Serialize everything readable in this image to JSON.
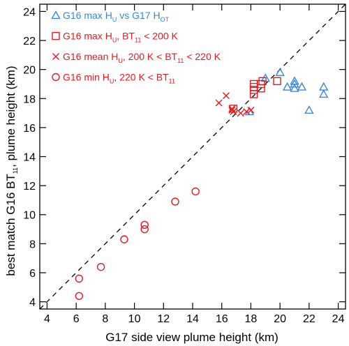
{
  "chart_data": {
    "type": "scatter",
    "xlabel": "G17 side view plume height (km)",
    "ylabel_parts": [
      "best match G16 BT",
      "11",
      ", plume height (km)"
    ],
    "xlim": [
      3.5,
      24.5
    ],
    "ylim": [
      3.5,
      24.5
    ],
    "xticks": [
      4,
      6,
      8,
      10,
      12,
      14,
      16,
      18,
      20,
      22,
      24
    ],
    "yticks": [
      4,
      6,
      8,
      10,
      12,
      14,
      16,
      18,
      20,
      22,
      24
    ],
    "xtick_labels": [
      "4",
      "6",
      "8",
      "10",
      "12",
      "14",
      "16",
      "18",
      "20",
      "22",
      "24"
    ],
    "ytick_labels": [
      "4",
      "6",
      "8",
      "10",
      "12",
      "14",
      "16",
      "18",
      "20",
      "22",
      "24"
    ],
    "reference_line": "1:1 dashed",
    "legend_position": "top-left",
    "series": [
      {
        "marker": "triangle",
        "color": "#3a86d8",
        "label_parts": [
          [
            "G16 max H",
            ""
          ],
          [
            "U",
            "sub"
          ],
          [
            " vs G17 H",
            ""
          ],
          [
            "OT",
            "sub"
          ]
        ],
        "points": [
          [
            17.9,
            17.1
          ],
          [
            19.0,
            19.4
          ],
          [
            20.0,
            19.8
          ],
          [
            20.5,
            18.8
          ],
          [
            21.0,
            19.2
          ],
          [
            21.0,
            18.7
          ],
          [
            21.0,
            19.0
          ],
          [
            21.5,
            18.8
          ],
          [
            22.0,
            17.2
          ],
          [
            23.0,
            18.8
          ],
          [
            23.0,
            18.3
          ]
        ]
      },
      {
        "marker": "square",
        "color": "#e8191f",
        "label_parts": [
          [
            "G16 max H",
            ""
          ],
          [
            "U",
            "sub"
          ],
          [
            ", BT",
            ""
          ],
          [
            "11",
            "sub"
          ],
          [
            " < 200 K",
            ""
          ]
        ],
        "points": [
          [
            16.8,
            17.3
          ],
          [
            18.2,
            18.3
          ],
          [
            18.2,
            18.6
          ],
          [
            18.2,
            18.8
          ],
          [
            18.2,
            19.0
          ],
          [
            18.7,
            18.7
          ],
          [
            18.7,
            19.0
          ],
          [
            18.8,
            19.2
          ],
          [
            19.8,
            19.2
          ]
        ]
      },
      {
        "marker": "x",
        "color": "#e8191f",
        "label_parts": [
          [
            "G16 mean H",
            ""
          ],
          [
            "U",
            "sub"
          ],
          [
            ", 200 K < BT",
            ""
          ],
          [
            "11",
            "sub"
          ],
          [
            " < 220 K",
            ""
          ]
        ],
        "points": [
          [
            15.8,
            17.7
          ],
          [
            16.3,
            18.2
          ],
          [
            16.7,
            17.2
          ],
          [
            16.7,
            17.3
          ],
          [
            16.8,
            17.1
          ],
          [
            17.3,
            17.0
          ],
          [
            17.7,
            17.1
          ],
          [
            18.0,
            17.2
          ]
        ]
      },
      {
        "marker": "circle",
        "color": "#e8191f",
        "label_parts": [
          [
            "G16 min H",
            ""
          ],
          [
            "U",
            "sub"
          ],
          [
            ", 220 K < BT",
            ""
          ],
          [
            "11",
            "sub"
          ]
        ],
        "points": [
          [
            6.2,
            4.4
          ],
          [
            6.2,
            5.6
          ],
          [
            7.7,
            6.4
          ],
          [
            9.3,
            8.3
          ],
          [
            10.7,
            9.0
          ],
          [
            10.7,
            9.3
          ],
          [
            12.8,
            10.9
          ],
          [
            14.2,
            11.6
          ]
        ]
      }
    ]
  }
}
